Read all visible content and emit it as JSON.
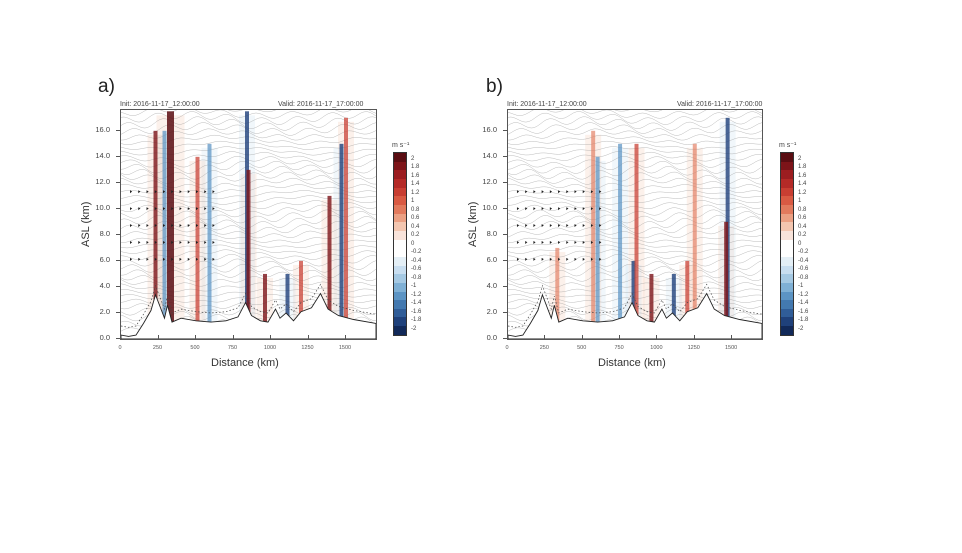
{
  "chart_data": [
    {
      "type": "heatmap",
      "panel_label": "a)",
      "init_text": "Init: 2016-11-17_12:00:00",
      "valid_text": "Valid: 2016-11-17_17:00:00",
      "xlabel": "Distance (km)",
      "ylabel": "ASL (km)",
      "xticks": [
        "0",
        "250",
        "500",
        "750",
        "1000",
        "1250",
        "1500"
      ],
      "yticks": [
        "0.0",
        "2.0",
        "4.0",
        "6.0",
        "8.0",
        "10.0",
        "12.0",
        "14.0",
        "16.0"
      ],
      "xlim": [
        0,
        1700
      ],
      "ylim": [
        0,
        17.6
      ],
      "colorbar": {
        "title": "m s⁻¹",
        "labels": [
          "2",
          "1.8",
          "1.6",
          "1.4",
          "1.2",
          "1",
          "0.8",
          "0.6",
          "0.4",
          "0.2",
          "0",
          "-0.2",
          "-0.4",
          "-0.6",
          "-0.8",
          "-1",
          "-1.2",
          "-1.4",
          "-1.6",
          "-1.8",
          "-2"
        ]
      },
      "overlays": [
        "potential temperature contours (gray)",
        "wind barbs",
        "terrain profile (solid black)",
        "dashed boundary-layer line"
      ],
      "features": [
        {
          "x_km": 230,
          "sign": "+",
          "magnitude": "strong",
          "z_top_km": 16
        },
        {
          "x_km": 330,
          "sign": "+",
          "magnitude": "very strong",
          "z_top_km": 17.5
        },
        {
          "x_km": 290,
          "sign": "-",
          "magnitude": "moderate",
          "z_top_km": 16
        },
        {
          "x_km": 510,
          "sign": "+",
          "magnitude": "moderate",
          "z_top_km": 14
        },
        {
          "x_km": 590,
          "sign": "-",
          "magnitude": "moderate",
          "z_top_km": 15
        },
        {
          "x_km": 840,
          "sign": "-",
          "magnitude": "strong",
          "z_top_km": 17.5
        },
        {
          "x_km": 850,
          "sign": "+",
          "magnitude": "strong",
          "z_top_km": 13
        },
        {
          "x_km": 960,
          "sign": "+",
          "magnitude": "strong",
          "z_top_km": 5
        },
        {
          "x_km": 1110,
          "sign": "-",
          "magnitude": "strong",
          "z_top_km": 5
        },
        {
          "x_km": 1200,
          "sign": "+",
          "magnitude": "moderate",
          "z_top_km": 6
        },
        {
          "x_km": 1390,
          "sign": "+",
          "magnitude": "strong",
          "z_top_km": 11
        },
        {
          "x_km": 1470,
          "sign": "-",
          "magnitude": "strong",
          "z_top_km": 15
        },
        {
          "x_km": 1500,
          "sign": "+",
          "magnitude": "moderate",
          "z_top_km": 17
        }
      ],
      "terrain_km": [
        [
          0,
          0.3
        ],
        [
          50,
          0.2
        ],
        [
          100,
          0.3
        ],
        [
          150,
          1.2
        ],
        [
          200,
          2.2
        ],
        [
          230,
          3.4
        ],
        [
          260,
          2.5
        ],
        [
          290,
          1.6
        ],
        [
          310,
          2.6
        ],
        [
          340,
          1.3
        ],
        [
          400,
          1.6
        ],
        [
          500,
          1.4
        ],
        [
          600,
          1.3
        ],
        [
          700,
          1.4
        ],
        [
          780,
          1.7
        ],
        [
          830,
          2.8
        ],
        [
          870,
          1.8
        ],
        [
          930,
          1.4
        ],
        [
          980,
          1.3
        ],
        [
          1030,
          2.3
        ],
        [
          1060,
          1.6
        ],
        [
          1100,
          2.0
        ],
        [
          1150,
          1.4
        ],
        [
          1200,
          2.1
        ],
        [
          1270,
          2.4
        ],
        [
          1330,
          3.5
        ],
        [
          1380,
          2.3
        ],
        [
          1450,
          1.8
        ],
        [
          1550,
          1.5
        ],
        [
          1700,
          1.2
        ]
      ]
    },
    {
      "type": "heatmap",
      "panel_label": "b)",
      "init_text": "Init: 2016-11-17_12:00:00",
      "valid_text": "Valid: 2016-11-17_17:00:00",
      "xlabel": "Distance (km)",
      "ylabel": "ASL (km)",
      "xticks": [
        "0",
        "250",
        "500",
        "750",
        "1000",
        "1250",
        "1500"
      ],
      "yticks": [
        "0.0",
        "2.0",
        "4.0",
        "6.0",
        "8.0",
        "10.0",
        "12.0",
        "14.0",
        "16.0"
      ],
      "xlim": [
        0,
        1700
      ],
      "ylim": [
        0,
        17.6
      ],
      "colorbar": {
        "title": "m s⁻¹",
        "labels": [
          "2",
          "1.8",
          "1.6",
          "1.4",
          "1.2",
          "1",
          "0.8",
          "0.6",
          "0.4",
          "0.2",
          "0",
          "-0.2",
          "-0.4",
          "-0.6",
          "-0.8",
          "-1",
          "-1.2",
          "-1.4",
          "-1.6",
          "-1.8",
          "-2"
        ]
      },
      "overlays": [
        "potential temperature contours (gray)",
        "wind barbs",
        "terrain profile (solid black)",
        "dashed boundary-layer line"
      ],
      "features": [
        {
          "x_km": 330,
          "sign": "+",
          "magnitude": "weak",
          "z_top_km": 7
        },
        {
          "x_km": 570,
          "sign": "+",
          "magnitude": "weak",
          "z_top_km": 16
        },
        {
          "x_km": 600,
          "sign": "-",
          "magnitude": "moderate",
          "z_top_km": 14
        },
        {
          "x_km": 750,
          "sign": "-",
          "magnitude": "moderate",
          "z_top_km": 15
        },
        {
          "x_km": 840,
          "sign": "-",
          "magnitude": "strong",
          "z_top_km": 6
        },
        {
          "x_km": 860,
          "sign": "+",
          "magnitude": "moderate",
          "z_top_km": 15
        },
        {
          "x_km": 960,
          "sign": "+",
          "magnitude": "strong",
          "z_top_km": 5
        },
        {
          "x_km": 1110,
          "sign": "-",
          "magnitude": "strong",
          "z_top_km": 5
        },
        {
          "x_km": 1200,
          "sign": "+",
          "magnitude": "moderate",
          "z_top_km": 6
        },
        {
          "x_km": 1250,
          "sign": "+",
          "magnitude": "weak",
          "z_top_km": 15
        },
        {
          "x_km": 1470,
          "sign": "-",
          "magnitude": "strong",
          "z_top_km": 17
        },
        {
          "x_km": 1460,
          "sign": "+",
          "magnitude": "strong",
          "z_top_km": 9
        }
      ],
      "terrain_km": [
        [
          0,
          0.3
        ],
        [
          50,
          0.2
        ],
        [
          100,
          0.3
        ],
        [
          150,
          1.2
        ],
        [
          200,
          2.2
        ],
        [
          230,
          3.4
        ],
        [
          260,
          2.5
        ],
        [
          290,
          1.6
        ],
        [
          310,
          2.6
        ],
        [
          340,
          1.3
        ],
        [
          400,
          1.6
        ],
        [
          500,
          1.4
        ],
        [
          600,
          1.3
        ],
        [
          700,
          1.4
        ],
        [
          780,
          1.7
        ],
        [
          830,
          2.8
        ],
        [
          870,
          1.8
        ],
        [
          930,
          1.4
        ],
        [
          980,
          1.3
        ],
        [
          1030,
          2.3
        ],
        [
          1060,
          1.6
        ],
        [
          1100,
          2.0
        ],
        [
          1150,
          1.4
        ],
        [
          1200,
          2.1
        ],
        [
          1270,
          2.4
        ],
        [
          1330,
          3.5
        ],
        [
          1380,
          2.3
        ],
        [
          1450,
          1.8
        ],
        [
          1550,
          1.5
        ],
        [
          1700,
          1.2
        ]
      ]
    }
  ],
  "colorbar_colors": [
    "#5a0d12",
    "#7d1419",
    "#9c1d20",
    "#b42a27",
    "#c83e32",
    "#d95a43",
    "#e27a5d",
    "#eba083",
    "#f3c6b0",
    "#f8e3da",
    "#ffffff",
    "#ffffff",
    "#e4eff6",
    "#c8def0",
    "#a5c9e3",
    "#7fb0d5",
    "#5c94c4",
    "#4379b0",
    "#305d98",
    "#1f417b",
    "#112959"
  ]
}
